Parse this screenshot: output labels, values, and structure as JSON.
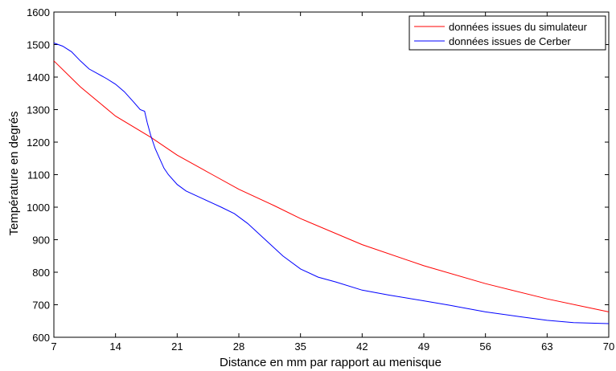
{
  "chart_data": {
    "type": "line",
    "title": "",
    "xlabel": "Distance en mm par rapport au menisque",
    "ylabel": "Température en degrés",
    "xlim": [
      7,
      70
    ],
    "ylim": [
      600,
      1600
    ],
    "xticks": [
      7,
      14,
      21,
      28,
      35,
      42,
      49,
      56,
      63,
      70
    ],
    "yticks": [
      600,
      700,
      800,
      900,
      1000,
      1100,
      1200,
      1300,
      1400,
      1500,
      1600
    ],
    "grid": false,
    "legend_position": "top-right",
    "series": [
      {
        "name": "données issues du simulateur",
        "color": "#ff0000",
        "x": [
          7,
          10,
          14,
          18,
          21,
          25,
          28,
          32,
          35,
          42,
          49,
          56,
          63,
          70
        ],
        "y": [
          1450,
          1370,
          1280,
          1215,
          1160,
          1100,
          1055,
          1005,
          965,
          885,
          820,
          765,
          718,
          678
        ]
      },
      {
        "name": "données issues de Cerber",
        "color": "#0000ff",
        "x": [
          7,
          8,
          9,
          10,
          11,
          12,
          13,
          14,
          15,
          16,
          16.8,
          17.3,
          17.6,
          18,
          18.5,
          19,
          19.5,
          20,
          21,
          22,
          24,
          26,
          27.5,
          29,
          31,
          33,
          35,
          37,
          39,
          42,
          45,
          49,
          52,
          56,
          60,
          63,
          66,
          70
        ],
        "y": [
          1505,
          1495,
          1478,
          1450,
          1425,
          1410,
          1395,
          1378,
          1355,
          1325,
          1300,
          1295,
          1260,
          1220,
          1180,
          1150,
          1120,
          1100,
          1070,
          1050,
          1025,
          1000,
          980,
          950,
          900,
          850,
          810,
          785,
          770,
          745,
          730,
          712,
          698,
          678,
          663,
          652,
          645,
          642
        ]
      }
    ]
  }
}
